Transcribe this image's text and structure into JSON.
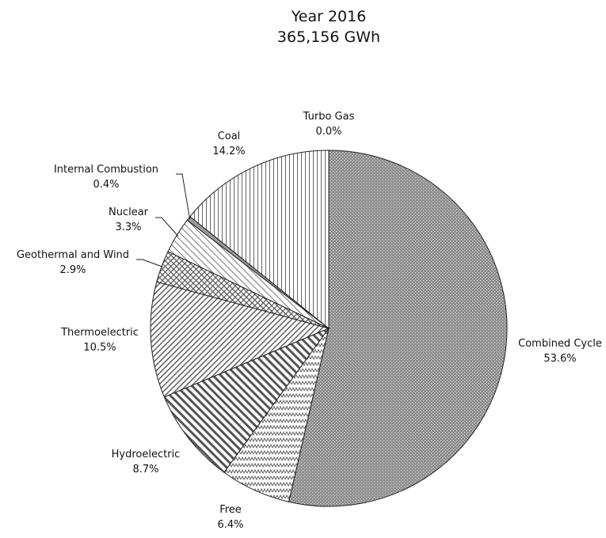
{
  "chart_data": {
    "type": "pie",
    "title": "Year 2016",
    "subtitle": "365,156 GWh",
    "slices": [
      {
        "label": "Combined Cycle",
        "value": 53.6,
        "value_label": "53.6%",
        "pattern": "dots"
      },
      {
        "label": "Free",
        "value": 6.4,
        "value_label": "6.4%",
        "pattern": "zigzag"
      },
      {
        "label": "Hydroelectric",
        "value": 8.7,
        "value_label": "8.7%",
        "pattern": "diag-right-thick"
      },
      {
        "label": "Thermoelectric",
        "value": 10.5,
        "value_label": "10.5%",
        "pattern": "diag-left"
      },
      {
        "label": "Geothermal and Wind",
        "value": 2.9,
        "value_label": "2.9%",
        "pattern": "crosshatch"
      },
      {
        "label": "Nuclear",
        "value": 3.3,
        "value_label": "3.3%",
        "pattern": "diag-right-light"
      },
      {
        "label": "Internal Combustion",
        "value": 0.4,
        "value_label": "0.4%",
        "pattern": "solid-gray"
      },
      {
        "label": "Coal",
        "value": 14.2,
        "value_label": "14.2%",
        "pattern": "vertical"
      },
      {
        "label": "Turbo Gas",
        "value": 0.0,
        "value_label": "0.0%",
        "pattern": "none"
      }
    ],
    "start_angle": "12 o'clock",
    "direction": "clockwise",
    "legend": "none (direct labels)"
  }
}
